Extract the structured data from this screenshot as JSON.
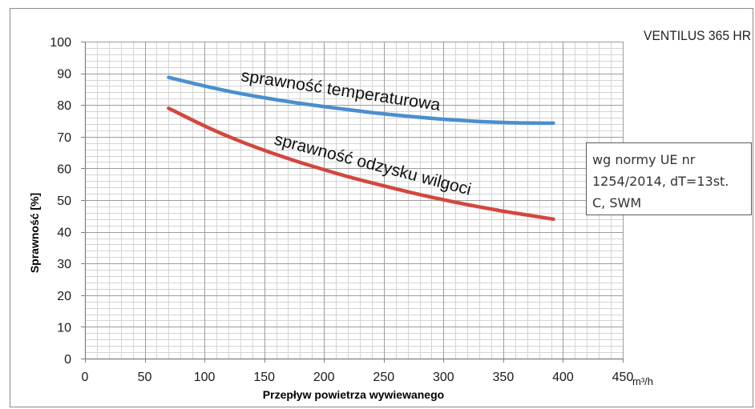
{
  "chart_data": {
    "type": "line",
    "title": "VENTILUS 365 HR",
    "xlabel": "Przepływ powietrza wywiewanego",
    "xunit": "m³/h",
    "ylabel": "Sprawność [%]",
    "xlim": [
      0,
      450
    ],
    "ylim": [
      0,
      100
    ],
    "x_ticks": [
      0,
      50,
      100,
      150,
      200,
      250,
      300,
      350,
      400,
      450
    ],
    "y_ticks": [
      0,
      10,
      20,
      30,
      40,
      50,
      60,
      70,
      80,
      90,
      100
    ],
    "grid": true,
    "x": [
      70,
      100,
      125,
      150,
      175,
      200,
      225,
      250,
      275,
      300,
      325,
      350,
      375,
      392
    ],
    "series": [
      {
        "name": "sprawność temperaturowa",
        "color": "#4a8fcf",
        "values": [
          88.7,
          86.0,
          84.0,
          82.3,
          80.8,
          79.5,
          78.3,
          77.2,
          76.3,
          75.5,
          74.9,
          74.5,
          74.3,
          74.3
        ]
      },
      {
        "name": "sprawność odzysku wilgoci",
        "color": "#d3473e",
        "values": [
          79.0,
          73.4,
          69.3,
          65.7,
          62.5,
          59.6,
          56.9,
          54.5,
          52.2,
          50.1,
          48.2,
          46.5,
          45.0,
          44.0
        ]
      }
    ],
    "note": [
      "wg normy UE nr",
      "1254/2014, dT=13st.",
      "C, SWM"
    ]
  }
}
